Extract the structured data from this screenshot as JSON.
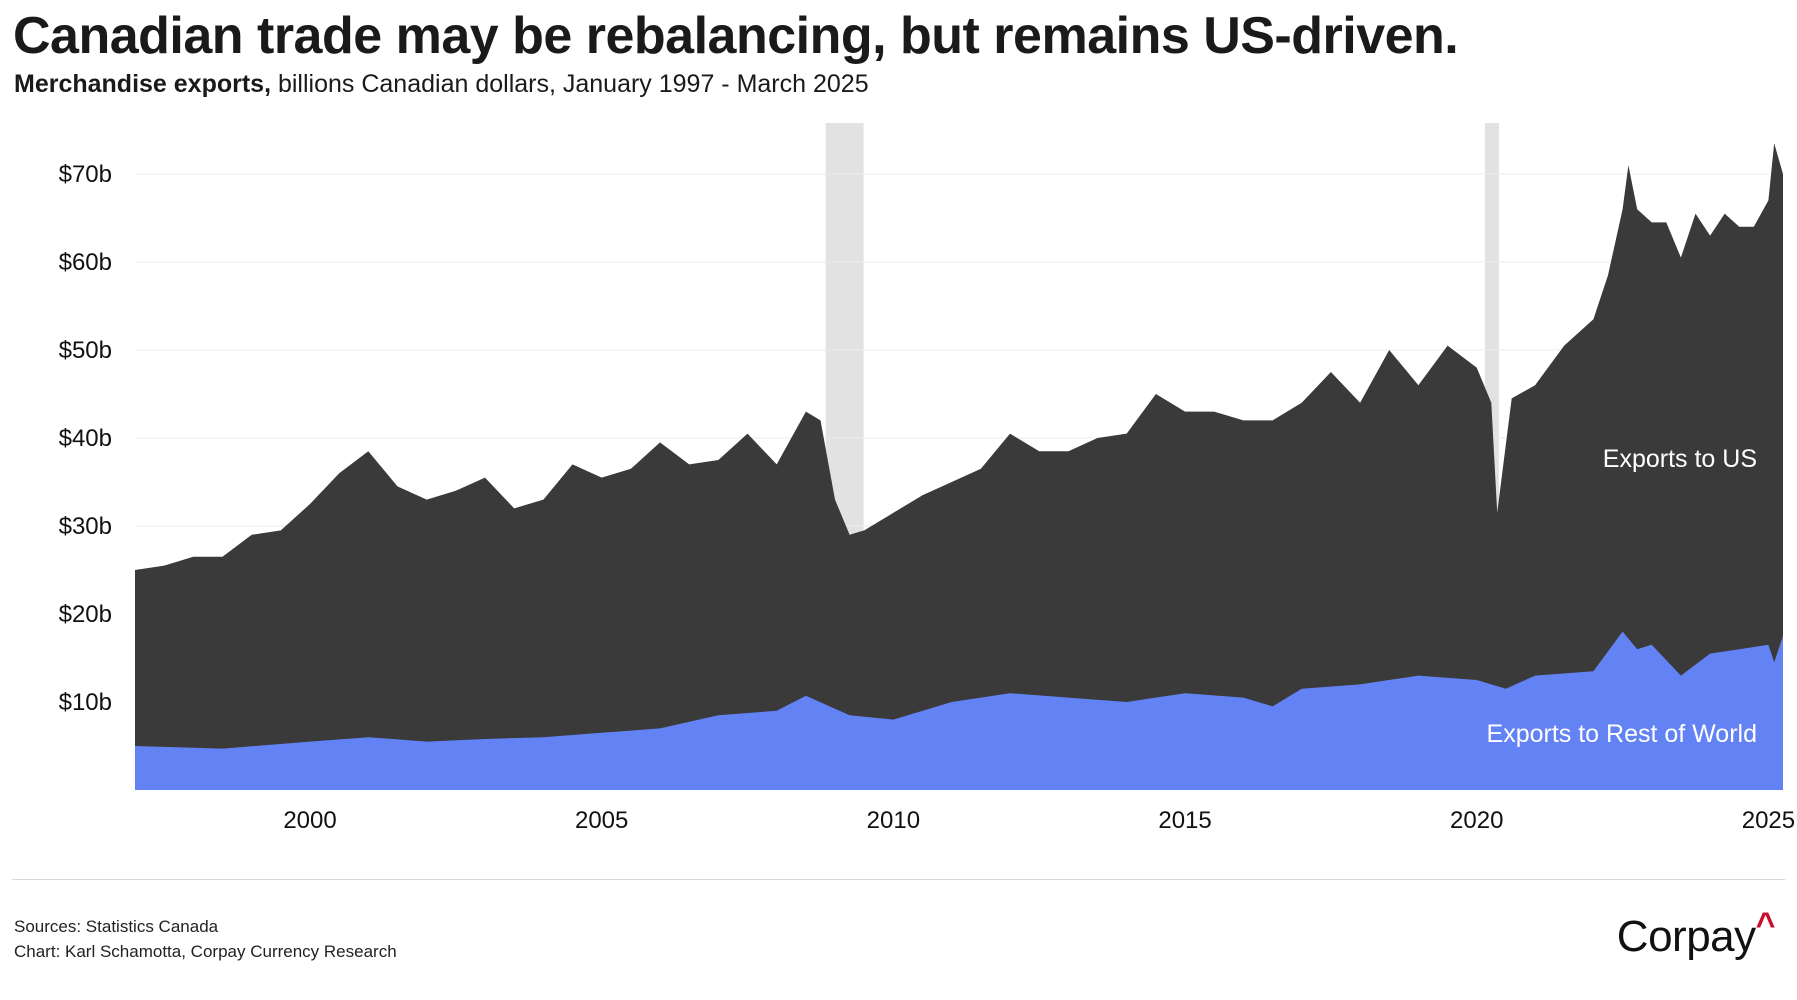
{
  "header": {
    "title": "Canadian trade may be rebalancing, but remains US-driven.",
    "subtitle_bold": "Merchandise exports,",
    "subtitle_rest": " billions Canadian dollars, January 1997 - March 2025"
  },
  "footer": {
    "sources": "Sources: Statistics Canada",
    "chart_credit": "Chart: Karl Schamotta, Corpay Currency Research",
    "logo_text": "Corpay",
    "logo_mark": "^"
  },
  "colors": {
    "us": "#3a3a3a",
    "row": "#6383f5",
    "recession": "#e2e2e2",
    "grid": "#ececec",
    "logo_accent": "#c8102e"
  },
  "chart_data": {
    "type": "area",
    "stacked": true,
    "title": "Canadian trade may be rebalancing, but remains US-driven.",
    "xlabel": "",
    "ylabel": "billions CAD",
    "xlim": [
      1997.0,
      2025.25
    ],
    "ylim": [
      0,
      75
    ],
    "x_ticks": [
      2000,
      2005,
      2010,
      2015,
      2020,
      2025
    ],
    "x_tick_labels": [
      "2000",
      "2005",
      "2010",
      "2015",
      "2020",
      "2025"
    ],
    "y_ticks": [
      10,
      20,
      30,
      40,
      50,
      60,
      70
    ],
    "y_tick_labels": [
      "$10b",
      "$20b",
      "$30b",
      "$40b",
      "$50b",
      "$60b",
      "$70b"
    ],
    "grid": true,
    "shaded_periods": [
      [
        2008.84,
        2009.49
      ],
      [
        2020.14,
        2020.38
      ]
    ],
    "series": [
      {
        "name": "Exports to Rest of World",
        "label": "Exports to Rest of World",
        "points": [
          [
            1997.0,
            5
          ],
          [
            1998.5,
            4.7
          ],
          [
            2000,
            5.5
          ],
          [
            2001,
            6
          ],
          [
            2002,
            5.5
          ],
          [
            2003,
            5.8
          ],
          [
            2004,
            6
          ],
          [
            2005,
            6.5
          ],
          [
            2006,
            7
          ],
          [
            2007,
            8.5
          ],
          [
            2008,
            9
          ],
          [
            2008.5,
            10.7
          ],
          [
            2009.25,
            8.5
          ],
          [
            2010,
            8
          ],
          [
            2011,
            10
          ],
          [
            2012,
            11
          ],
          [
            2013,
            10.5
          ],
          [
            2014,
            10
          ],
          [
            2015,
            11
          ],
          [
            2016,
            10.5
          ],
          [
            2016.5,
            9.5
          ],
          [
            2017,
            11.5
          ],
          [
            2018,
            12
          ],
          [
            2019,
            13
          ],
          [
            2020,
            12.5
          ],
          [
            2020.5,
            11.5
          ],
          [
            2021,
            13
          ],
          [
            2022,
            13.5
          ],
          [
            2022.5,
            18
          ],
          [
            2022.75,
            16
          ],
          [
            2023,
            16.5
          ],
          [
            2023.5,
            13
          ],
          [
            2024,
            15.5
          ],
          [
            2024.5,
            16
          ],
          [
            2025,
            16.5
          ],
          [
            2025.1,
            14.5
          ],
          [
            2025.25,
            17.5
          ]
        ]
      },
      {
        "name": "Exports to US",
        "label": "Exports to US",
        "total_points": [
          [
            1997.0,
            25
          ],
          [
            1997.5,
            25.5
          ],
          [
            1998,
            26.5
          ],
          [
            1998.5,
            26.5
          ],
          [
            1999,
            29
          ],
          [
            1999.5,
            29.5
          ],
          [
            2000,
            32.5
          ],
          [
            2000.5,
            36
          ],
          [
            2001,
            38.5
          ],
          [
            2001.5,
            34.5
          ],
          [
            2002,
            33
          ],
          [
            2002.5,
            34
          ],
          [
            2003,
            35.5
          ],
          [
            2003.5,
            32
          ],
          [
            2004,
            33
          ],
          [
            2004.5,
            37
          ],
          [
            2005,
            35.5
          ],
          [
            2005.5,
            36.5
          ],
          [
            2006,
            39.5
          ],
          [
            2006.5,
            37
          ],
          [
            2007,
            37.5
          ],
          [
            2007.5,
            40.5
          ],
          [
            2008,
            37
          ],
          [
            2008.5,
            43
          ],
          [
            2008.75,
            42
          ],
          [
            2009,
            33
          ],
          [
            2009.25,
            29
          ],
          [
            2009.5,
            29.5
          ],
          [
            2010,
            31.5
          ],
          [
            2010.5,
            33.5
          ],
          [
            2011,
            35
          ],
          [
            2011.5,
            36.5
          ],
          [
            2012,
            40.5
          ],
          [
            2012.5,
            38.5
          ],
          [
            2013,
            38.5
          ],
          [
            2013.5,
            40
          ],
          [
            2014,
            40.5
          ],
          [
            2014.5,
            45
          ],
          [
            2015,
            43
          ],
          [
            2015.5,
            43
          ],
          [
            2016,
            42
          ],
          [
            2016.5,
            42
          ],
          [
            2017,
            44
          ],
          [
            2017.5,
            47.5
          ],
          [
            2018,
            44
          ],
          [
            2018.5,
            50
          ],
          [
            2019,
            46
          ],
          [
            2019.5,
            50.5
          ],
          [
            2020,
            48
          ],
          [
            2020.25,
            44
          ],
          [
            2020.35,
            31.5
          ],
          [
            2020.6,
            44.5
          ],
          [
            2021,
            46
          ],
          [
            2021.5,
            50.5
          ],
          [
            2022,
            53.5
          ],
          [
            2022.25,
            58.5
          ],
          [
            2022.5,
            66
          ],
          [
            2022.6,
            71
          ],
          [
            2022.75,
            66
          ],
          [
            2023,
            64.5
          ],
          [
            2023.25,
            64.5
          ],
          [
            2023.5,
            60.5
          ],
          [
            2023.75,
            65.5
          ],
          [
            2024,
            63
          ],
          [
            2024.25,
            65.5
          ],
          [
            2024.5,
            64
          ],
          [
            2024.75,
            64
          ],
          [
            2025,
            67
          ],
          [
            2025.1,
            73.5
          ],
          [
            2025.25,
            70
          ]
        ]
      }
    ]
  }
}
